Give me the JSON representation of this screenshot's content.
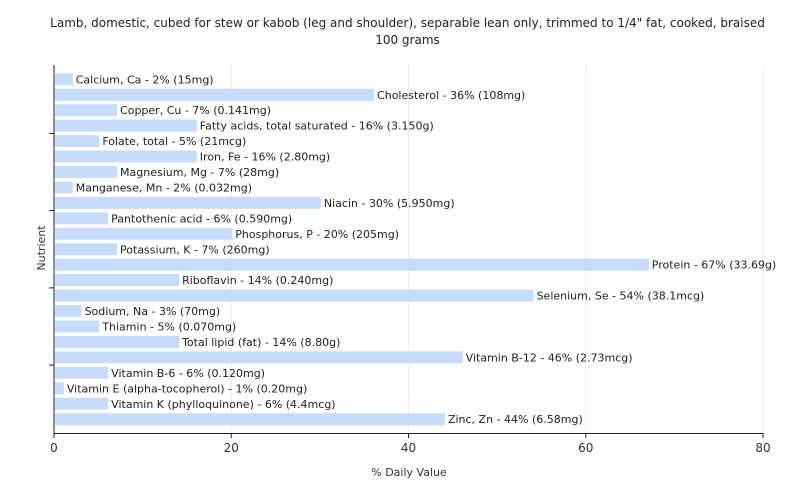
{
  "chart_data": {
    "type": "bar",
    "orientation": "horizontal",
    "title": "Lamb, domestic, cubed for stew or kabob (leg and shoulder), separable lean only, trimmed to 1/4\" fat, cooked, braised",
    "subtitle": "100 grams",
    "xlabel": "% Daily Value",
    "ylabel": "Nutrient",
    "xlim": [
      0,
      80
    ],
    "xticks": [
      0,
      20,
      40,
      60,
      80
    ],
    "grid": true,
    "bar_color": "#c6dcfa",
    "categories": [
      "Calcium, Ca",
      "Cholesterol",
      "Copper, Cu",
      "Fatty acids, total saturated",
      "Folate, total",
      "Iron, Fe",
      "Magnesium, Mg",
      "Manganese, Mn",
      "Niacin",
      "Pantothenic acid",
      "Phosphorus, P",
      "Potassium, K",
      "Protein",
      "Riboflavin",
      "Selenium, Se",
      "Sodium, Na",
      "Thiamin",
      "Total lipid (fat)",
      "Vitamin B-12",
      "Vitamin B-6",
      "Vitamin E (alpha-tocopherol)",
      "Vitamin K (phylloquinone)",
      "Zinc, Zn"
    ],
    "values": [
      2,
      36,
      7,
      16,
      5,
      16,
      7,
      2,
      30,
      6,
      20,
      7,
      67,
      14,
      54,
      3,
      5,
      14,
      46,
      6,
      1,
      6,
      44
    ],
    "labels": [
      "Calcium, Ca - 2% (15mg)",
      "Cholesterol - 36% (108mg)",
      "Copper, Cu - 7% (0.141mg)",
      "Fatty acids, total saturated - 16% (3.150g)",
      "Folate, total - 5% (21mcg)",
      "Iron, Fe - 16% (2.80mg)",
      "Magnesium, Mg - 7% (28mg)",
      "Manganese, Mn - 2% (0.032mg)",
      "Niacin - 30% (5.950mg)",
      "Pantothenic acid - 6% (0.590mg)",
      "Phosphorus, P - 20% (205mg)",
      "Potassium, K - 7% (260mg)",
      "Protein - 67% (33.69g)",
      "Riboflavin - 14% (0.240mg)",
      "Selenium, Se - 54% (38.1mcg)",
      "Sodium, Na - 3% (70mg)",
      "Thiamin - 5% (0.070mg)",
      "Total lipid (fat) - 14% (8.80g)",
      "Vitamin B-12 - 46% (2.73mcg)",
      "Vitamin B-6 - 6% (0.120mg)",
      "Vitamin E (alpha-tocopherol) - 1% (0.20mg)",
      "Vitamin K (phylloquinone) - 6% (4.4mcg)",
      "Zinc, Zn - 44% (6.58mg)"
    ]
  }
}
